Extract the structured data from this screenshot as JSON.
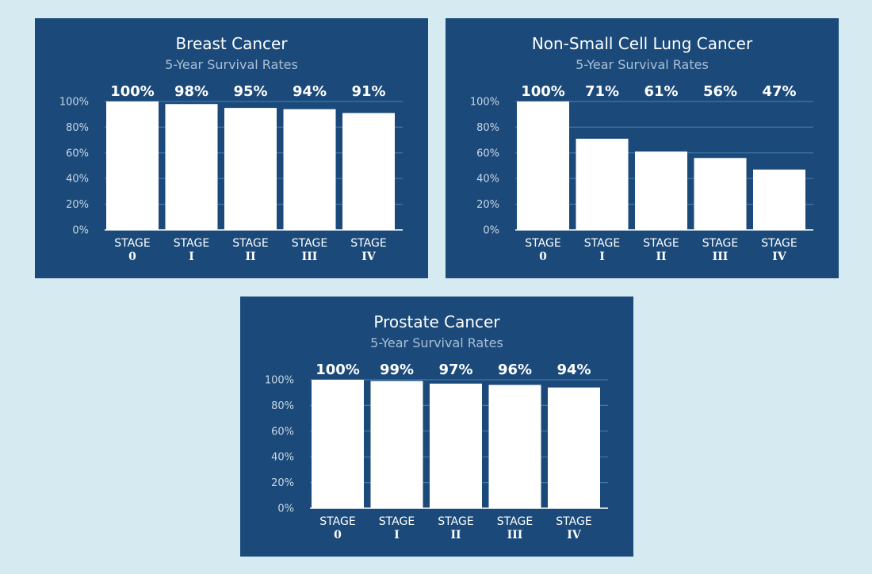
{
  "colors": {
    "background": "#d6eaf2",
    "panel": "#1b4a7a",
    "bar": "#ffffff",
    "gridline": "#3f78ad",
    "subtitle": "#a9bfd6",
    "tick": "#c9d6e4"
  },
  "chart_data": [
    {
      "type": "bar",
      "title": "Breast Cancer",
      "subtitle": "5-Year Survival Rates",
      "categories": [
        {
          "line1": "STAGE",
          "line2": "0"
        },
        {
          "line1": "STAGE",
          "line2": "I"
        },
        {
          "line1": "STAGE",
          "line2": "II"
        },
        {
          "line1": "STAGE",
          "line2": "III"
        },
        {
          "line1": "STAGE",
          "line2": "IV"
        }
      ],
      "values": [
        100,
        98,
        95,
        94,
        91
      ],
      "value_labels": [
        "100%",
        "98%",
        "95%",
        "94%",
        "91%"
      ],
      "yticks": [
        0,
        20,
        40,
        60,
        80,
        100
      ],
      "ytick_labels": [
        "0%",
        "20%",
        "40%",
        "60%",
        "80%",
        "100%"
      ],
      "ylim": [
        0,
        100
      ],
      "xlabel": "",
      "ylabel": "",
      "grid": true
    },
    {
      "type": "bar",
      "title": "Non-Small Cell Lung Cancer",
      "subtitle": "5-Year Survival Rates",
      "categories": [
        {
          "line1": "STAGE",
          "line2": "0"
        },
        {
          "line1": "STAGE",
          "line2": "I"
        },
        {
          "line1": "STAGE",
          "line2": "II"
        },
        {
          "line1": "STAGE",
          "line2": "III"
        },
        {
          "line1": "STAGE",
          "line2": "IV"
        }
      ],
      "values": [
        100,
        71,
        61,
        56,
        47
      ],
      "value_labels": [
        "100%",
        "71%",
        "61%",
        "56%",
        "47%"
      ],
      "yticks": [
        0,
        20,
        40,
        60,
        80,
        100
      ],
      "ytick_labels": [
        "0%",
        "20%",
        "40%",
        "60%",
        "80%",
        "100%"
      ],
      "ylim": [
        0,
        100
      ],
      "xlabel": "",
      "ylabel": "",
      "grid": true
    },
    {
      "type": "bar",
      "title": "Prostate Cancer",
      "subtitle": "5-Year Survival Rates",
      "categories": [
        {
          "line1": "STAGE",
          "line2": "0"
        },
        {
          "line1": "STAGE",
          "line2": "I"
        },
        {
          "line1": "STAGE",
          "line2": "II"
        },
        {
          "line1": "STAGE",
          "line2": "III"
        },
        {
          "line1": "STAGE",
          "line2": "IV"
        }
      ],
      "values": [
        100,
        99,
        97,
        96,
        94
      ],
      "value_labels": [
        "100%",
        "99%",
        "97%",
        "96%",
        "94%"
      ],
      "yticks": [
        0,
        20,
        40,
        60,
        80,
        100
      ],
      "ytick_labels": [
        "0%",
        "20%",
        "40%",
        "60%",
        "80%",
        "100%"
      ],
      "ylim": [
        0,
        100
      ],
      "xlabel": "",
      "ylabel": "",
      "grid": true
    }
  ]
}
